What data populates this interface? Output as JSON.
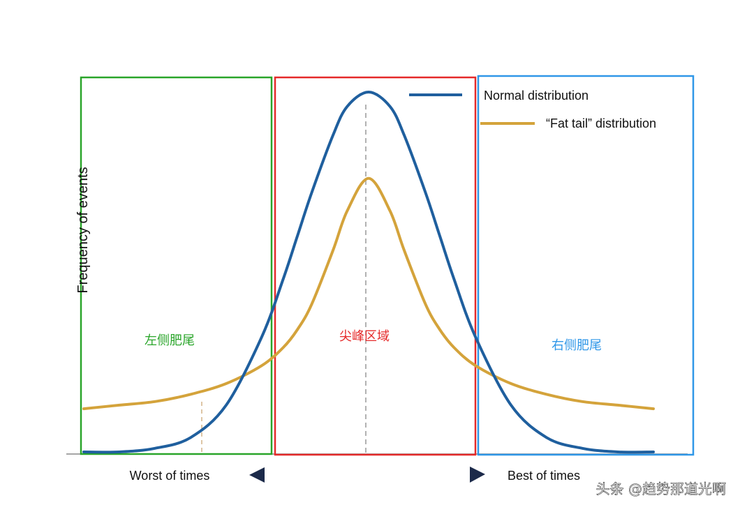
{
  "chart_data": {
    "type": "line",
    "title": "",
    "ylabel": "Frequency of events",
    "xlabel_left": "Worst of times",
    "xlabel_right": "Best of times",
    "x_range": [
      -4,
      4
    ],
    "y_range": [
      0,
      1
    ],
    "grid": false,
    "legend_position": "top-right",
    "series": [
      {
        "name": "Normal distribution",
        "color": "#1f5f9e",
        "x": [
          -4,
          -3.5,
          -3,
          -2.5,
          -2,
          -1.5,
          -1.2,
          -1,
          -0.8,
          -0.5,
          -0.3,
          0,
          0.3,
          0.5,
          0.8,
          1,
          1.2,
          1.5,
          2,
          2.5,
          3,
          3.5,
          4
        ],
        "y": [
          0.0,
          0.0,
          0.01,
          0.04,
          0.13,
          0.32,
          0.48,
          0.6,
          0.72,
          0.88,
          0.96,
          1.0,
          0.96,
          0.88,
          0.72,
          0.6,
          0.48,
          0.32,
          0.13,
          0.04,
          0.01,
          0.0,
          0.0
        ]
      },
      {
        "name": "“Fat tail” distribution",
        "color": "#d4a33b",
        "x": [
          -4,
          -3.5,
          -3,
          -2.5,
          -2,
          -1.5,
          -1.2,
          -1,
          -0.8,
          -0.5,
          -0.3,
          0,
          0.3,
          0.5,
          0.8,
          1,
          1.2,
          1.5,
          2,
          2.5,
          3,
          3.5,
          4
        ],
        "y": [
          0.12,
          0.13,
          0.14,
          0.16,
          0.19,
          0.24,
          0.29,
          0.34,
          0.41,
          0.56,
          0.67,
          0.76,
          0.67,
          0.56,
          0.41,
          0.34,
          0.29,
          0.24,
          0.19,
          0.16,
          0.14,
          0.13,
          0.12
        ]
      }
    ],
    "regions": [
      {
        "label": "左侧肥尾",
        "color": "#2aa52a"
      },
      {
        "label": "尖峰区域",
        "color": "#e52a2a"
      },
      {
        "label": "右侧肥尾",
        "color": "#2f97e8"
      }
    ]
  },
  "watermark": "头条 @趋势那道光啊"
}
